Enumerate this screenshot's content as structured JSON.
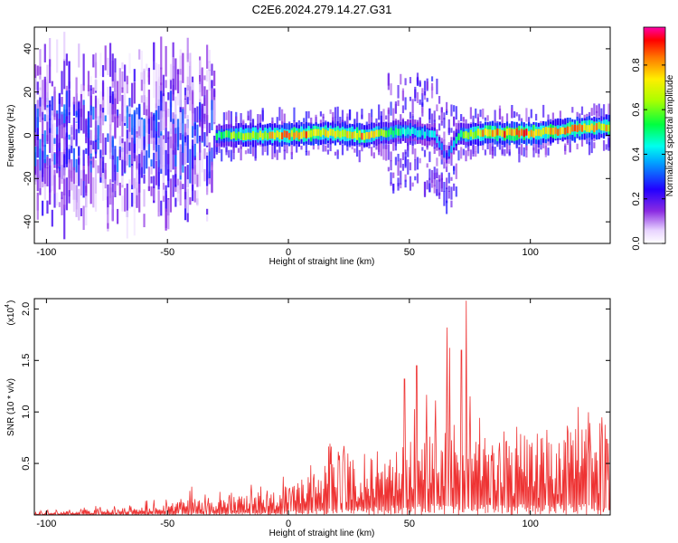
{
  "title": "C2E6.2024.279.14.27.G31",
  "chart_data": [
    {
      "type": "heatmap",
      "title": "C2E6.2024.279.14.27.G31",
      "xlabel": "Height of straight line (km)",
      "ylabel": "Frequency (Hz)",
      "xlim": [
        -105,
        133
      ],
      "ylim": [
        -50,
        50
      ],
      "x_ticks": [
        -100,
        -50,
        0,
        50,
        100
      ],
      "y_ticks": [
        -40,
        -20,
        0,
        20,
        40
      ],
      "colorbar": {
        "label": "Normalized spectral amplitude",
        "range": [
          0,
          0.97
        ],
        "ticks": [
          "0.0",
          "0.2",
          "0.4",
          "0.6",
          "0.8"
        ],
        "colormap": "rainbow (white, violet, blue, cyan, green, yellow, red, magenta)"
      },
      "ridge": {
        "x": [
          -30,
          -20,
          -10,
          0,
          10,
          20,
          30,
          40,
          50,
          60,
          65,
          70,
          80,
          90,
          100,
          110,
          120,
          130
        ],
        "frequency": [
          0,
          0,
          0,
          0,
          1,
          1,
          0,
          1,
          2,
          0,
          -10,
          0,
          1,
          1,
          1,
          2,
          3,
          4
        ],
        "peak_amplitude": [
          0.55,
          0.75,
          0.8,
          0.95,
          0.9,
          0.85,
          0.9,
          0.7,
          0.55,
          0.45,
          0.3,
          0.6,
          0.9,
          0.95,
          0.95,
          0.9,
          0.9,
          0.85
        ]
      },
      "noise_region": {
        "x_range": [
          -105,
          -30
        ],
        "frequency_spread": [
          -45,
          45
        ],
        "peak_amplitude": 0.35
      }
    },
    {
      "type": "line",
      "xlabel": "Height of straight line (km)",
      "ylabel": "SNR (10 * v/v)",
      "y_multiplier": "(x10",
      "y_multiplier_exponent": "4",
      "xlim": [
        -105,
        133
      ],
      "ylim": [
        0,
        2.1
      ],
      "x_ticks": [
        -100,
        -50,
        0,
        50,
        100
      ],
      "y_ticks": [
        0.5,
        1.0,
        1.5,
        2.0
      ],
      "y_tick_labels": [
        "0.5",
        "1.0",
        "1.5",
        "2.0"
      ],
      "series": [
        {
          "color": "#ee3333",
          "envelope_x": [
            -105,
            -90,
            -75,
            -60,
            -50,
            -40,
            -30,
            -20,
            -10,
            0,
            10,
            20,
            30,
            40,
            50,
            60,
            65,
            70,
            75,
            80,
            90,
            100,
            110,
            120,
            133
          ],
          "envelope_max": [
            0.04,
            0.06,
            0.1,
            0.14,
            0.2,
            0.28,
            0.25,
            0.35,
            0.3,
            0.5,
            0.6,
            0.75,
            0.8,
            0.95,
            1.1,
            1.3,
            1.8,
            1.4,
            1.2,
            1.0,
            0.95,
            1.0,
            0.95,
            1.05,
            0.95
          ],
          "envelope_mean": [
            0.02,
            0.03,
            0.04,
            0.05,
            0.07,
            0.1,
            0.1,
            0.13,
            0.13,
            0.2,
            0.3,
            0.35,
            0.4,
            0.45,
            0.5,
            0.55,
            0.6,
            0.55,
            0.5,
            0.5,
            0.5,
            0.55,
            0.55,
            0.6,
            0.6
          ],
          "spikes": [
            {
              "x": 65.5,
              "y": 1.82
            },
            {
              "x": 73.5,
              "y": 2.08
            },
            {
              "x": 71.5,
              "y": 1.6
            },
            {
              "x": 53,
              "y": 1.45
            },
            {
              "x": 48,
              "y": 1.32
            }
          ]
        }
      ]
    }
  ]
}
